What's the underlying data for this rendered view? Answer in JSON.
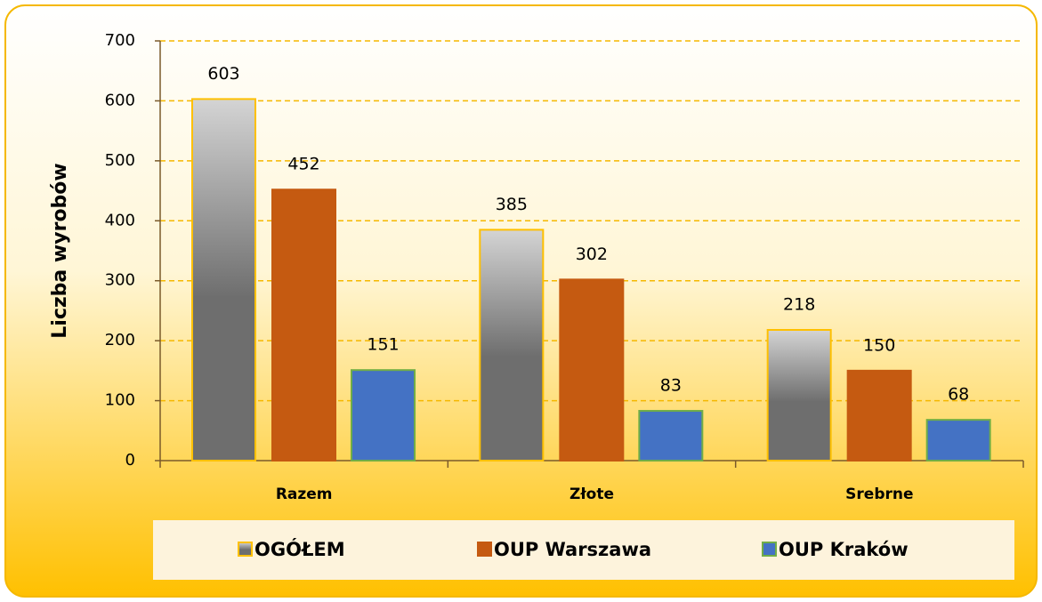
{
  "chart_data": {
    "type": "bar",
    "y_axis_label": "Liczba wyrobów",
    "categories": [
      "Razem",
      "Złote",
      "Srebrne"
    ],
    "series": [
      {
        "name": "OGÓŁEM",
        "color": "#6e6e6e",
        "edge": "#ffc000",
        "values": [
          603,
          385,
          218
        ]
      },
      {
        "name": "OUP Warszawa",
        "color": "#c55a11",
        "edge": "#c55a11",
        "values": [
          452,
          302,
          150
        ]
      },
      {
        "name": "OUP Kraków",
        "color": "#4472c4",
        "edge": "#70ad47",
        "values": [
          151,
          83,
          68
        ]
      }
    ],
    "ylim": [
      0,
      700
    ],
    "yticks": [
      0,
      100,
      200,
      300,
      400,
      500,
      600,
      700
    ],
    "grid": true,
    "legend": "bottom"
  }
}
